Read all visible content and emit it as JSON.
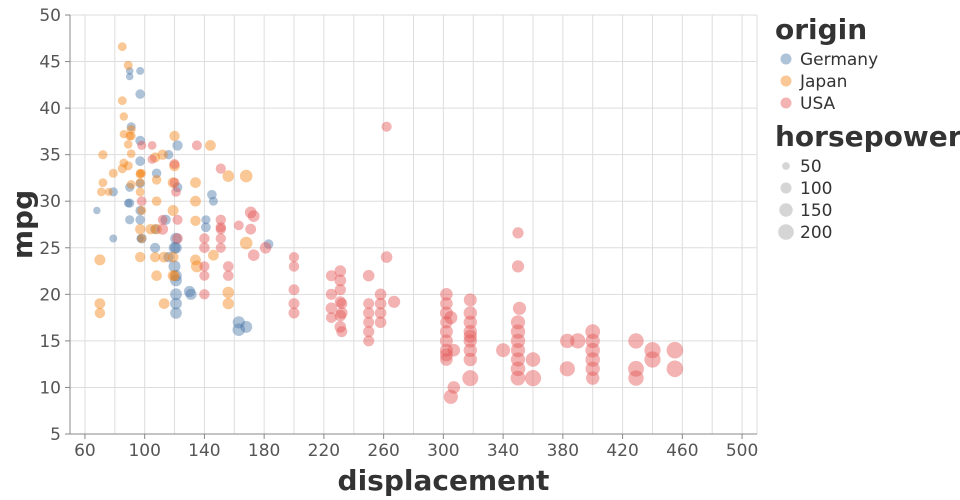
{
  "chart_data": {
    "type": "scatter",
    "xlabel": "displacement",
    "ylabel": "mpg",
    "xlim": [
      50,
      510
    ],
    "ylim": [
      5,
      50
    ],
    "x_ticks": [
      60,
      100,
      140,
      180,
      220,
      260,
      300,
      340,
      380,
      420,
      460,
      500
    ],
    "y_ticks": [
      5,
      10,
      15,
      20,
      25,
      30,
      35,
      40,
      45,
      50
    ],
    "grid": true,
    "color_legend": {
      "title": "origin",
      "entries": [
        {
          "name": "Germany",
          "color": "#4c78a8"
        },
        {
          "name": "Japan",
          "color": "#f58518"
        },
        {
          "name": "USA",
          "color": "#e45756"
        }
      ]
    },
    "size_legend": {
      "title": "horsepower",
      "entries": [
        {
          "label": "50",
          "value": 50
        },
        {
          "label": "100",
          "value": 100
        },
        {
          "label": "150",
          "value": 150
        },
        {
          "label": "200",
          "value": 200
        }
      ]
    },
    "series": [
      {
        "name": "Germany",
        "points": [
          [
            68,
            29,
            46
          ],
          [
            79,
            26,
            52
          ],
          [
            90,
            44,
            48
          ],
          [
            90,
            43.4,
            48
          ],
          [
            97,
            44,
            52
          ],
          [
            97,
            41.5,
            76
          ],
          [
            97,
            36.5,
            78
          ],
          [
            97,
            34.3,
            78
          ],
          [
            79,
            31,
            70
          ],
          [
            90,
            31.5,
            70
          ],
          [
            97,
            29,
            75
          ],
          [
            97,
            26,
            46
          ],
          [
            90,
            29.8,
            71
          ],
          [
            97,
            28,
            75
          ],
          [
            107,
            27,
            80
          ],
          [
            107,
            25,
            85
          ],
          [
            116,
            24,
            90
          ],
          [
            121,
            25,
            110
          ],
          [
            121,
            22,
            112
          ],
          [
            121,
            20,
            115
          ],
          [
            121,
            19,
            115
          ],
          [
            121,
            18,
            110
          ],
          [
            121,
            26,
            110
          ],
          [
            121,
            21.5,
            115
          ],
          [
            114,
            28,
            90
          ],
          [
            120,
            25,
            110
          ],
          [
            120,
            23,
            120
          ],
          [
            131,
            20,
            103
          ],
          [
            130,
            20.3,
            103
          ],
          [
            141,
            28,
            71
          ],
          [
            141,
            27.2,
            80
          ],
          [
            145,
            30.7,
            76
          ],
          [
            146,
            30,
            67
          ],
          [
            163,
            17,
            125
          ],
          [
            163,
            16.2,
            133
          ],
          [
            168,
            16.5,
            120
          ],
          [
            183,
            25.4,
            77
          ],
          [
            97,
            31.9,
            71
          ],
          [
            108,
            33,
            75
          ],
          [
            89,
            29.8,
            62
          ],
          [
            98,
            26,
            83
          ],
          [
            122,
            36,
            88
          ],
          [
            116,
            35,
            74
          ],
          [
            122,
            31.5,
            80
          ],
          [
            90,
            28,
            70
          ],
          [
            91,
            38,
            67
          ]
        ]
      },
      {
        "name": "Japan",
        "points": [
          [
            71,
            31,
            65
          ],
          [
            72,
            35,
            69
          ],
          [
            97,
            24,
            88
          ],
          [
            97,
            27,
            88
          ],
          [
            97,
            31,
            67
          ],
          [
            97,
            32,
            67
          ],
          [
            72,
            32,
            65
          ],
          [
            76,
            31,
            52
          ],
          [
            79,
            33,
            68
          ],
          [
            85,
            33.5,
            70
          ],
          [
            85,
            40.8,
            65
          ],
          [
            86,
            39.1,
            58
          ],
          [
            86,
            37.2,
            58
          ],
          [
            86,
            34.1,
            65
          ],
          [
            89,
            33.8,
            70
          ],
          [
            89,
            36.1,
            60
          ],
          [
            90,
            37,
            65
          ],
          [
            91,
            37.7,
            68
          ],
          [
            91,
            31.8,
            67
          ],
          [
            91,
            35.1,
            60
          ],
          [
            97,
            33,
            67
          ],
          [
            97,
            32.9,
            67
          ],
          [
            98,
            29,
            68
          ],
          [
            98,
            26,
            68
          ],
          [
            104,
            27,
            88
          ],
          [
            107,
            24,
            86
          ],
          [
            108,
            27,
            94
          ],
          [
            108,
            22,
            94
          ],
          [
            108,
            32.3,
            75
          ],
          [
            112,
            35,
            88
          ],
          [
            113,
            24,
            95
          ],
          [
            113,
            19,
            95
          ],
          [
            119,
            32,
            97
          ],
          [
            119,
            24,
            97
          ],
          [
            119,
            22,
            97
          ],
          [
            120,
            37,
            88
          ],
          [
            120,
            33.8,
            97
          ],
          [
            134,
            27.9,
            88
          ],
          [
            134,
            23.7,
            95
          ],
          [
            134,
            32,
            96
          ],
          [
            144,
            36,
            96
          ],
          [
            146,
            24.2,
            97
          ],
          [
            156,
            20.2,
            110
          ],
          [
            156,
            19,
            108
          ],
          [
            168,
            25.5,
            132
          ],
          [
            168,
            32.7,
            132
          ],
          [
            70,
            23.7,
            100
          ],
          [
            70,
            19,
            97
          ],
          [
            70,
            18,
            90
          ],
          [
            85,
            46.6,
            65
          ],
          [
            89,
            44.6,
            67
          ],
          [
            91,
            37,
            68
          ],
          [
            98,
            33,
            62
          ],
          [
            107,
            34.7,
            86
          ],
          [
            108,
            30,
            75
          ],
          [
            119,
            29,
            100
          ],
          [
            120,
            22,
            88
          ],
          [
            134,
            30,
            95
          ],
          [
            135,
            23,
            120
          ],
          [
            156,
            32.7,
            110
          ]
        ]
      },
      {
        "name": "USA",
        "points": [
          [
            98,
            36,
            70
          ],
          [
            98,
            30,
            80
          ],
          [
            105,
            36,
            63
          ],
          [
            105,
            34.5,
            70
          ],
          [
            112,
            27,
            100
          ],
          [
            112,
            28,
            80
          ],
          [
            120,
            34,
            84
          ],
          [
            120,
            32,
            84
          ],
          [
            121,
            31,
            80
          ],
          [
            122,
            28,
            85
          ],
          [
            122,
            26,
            92
          ],
          [
            135,
            36,
            84
          ],
          [
            140,
            26,
            90
          ],
          [
            140,
            25,
            92
          ],
          [
            140,
            23,
            86
          ],
          [
            140,
            22,
            86
          ],
          [
            140,
            20,
            88
          ],
          [
            151,
            28,
            90
          ],
          [
            151,
            26,
            90
          ],
          [
            151,
            27,
            90
          ],
          [
            151,
            25,
            85
          ],
          [
            151,
            33.5,
            85
          ],
          [
            151,
            27.2,
            88
          ],
          [
            156,
            23,
            92
          ],
          [
            156,
            22,
            92
          ],
          [
            163,
            27.4,
            80
          ],
          [
            171,
            27,
            97
          ],
          [
            171,
            28.8,
            115
          ],
          [
            173,
            28.4,
            115
          ],
          [
            173,
            24.2,
            110
          ],
          [
            181,
            25,
            110
          ],
          [
            200,
            24,
            85
          ],
          [
            200,
            23,
            90
          ],
          [
            200,
            20.5,
            95
          ],
          [
            200,
            19,
            100
          ],
          [
            200,
            18,
            100
          ],
          [
            225,
            22,
            100
          ],
          [
            225,
            20,
            105
          ],
          [
            225,
            18.5,
            110
          ],
          [
            225,
            17.5,
            95
          ],
          [
            231,
            22.5,
            110
          ],
          [
            231,
            21.5,
            115
          ],
          [
            231,
            20.5,
            105
          ],
          [
            231,
            19.2,
            105
          ],
          [
            231,
            17.7,
            110
          ],
          [
            232,
            18,
            110
          ],
          [
            232,
            19,
            100
          ],
          [
            250,
            22,
            110
          ],
          [
            250,
            19,
            100
          ],
          [
            250,
            18,
            105
          ],
          [
            250,
            16,
            105
          ],
          [
            250,
            15,
            100
          ],
          [
            258,
            20,
            110
          ],
          [
            258,
            18,
            110
          ],
          [
            258,
            19,
            110
          ],
          [
            258,
            17,
            110
          ],
          [
            262,
            38,
            85
          ],
          [
            262,
            24,
            110
          ],
          [
            267,
            19.2,
            125
          ],
          [
            302,
            13,
            130
          ],
          [
            302,
            14,
            140
          ],
          [
            302,
            15,
            140
          ],
          [
            302,
            16,
            140
          ],
          [
            302,
            17,
            129
          ],
          [
            302,
            18,
            139
          ],
          [
            302,
            19,
            130
          ],
          [
            302,
            20,
            130
          ],
          [
            305,
            17.5,
            145
          ],
          [
            305,
            9,
            165
          ],
          [
            307,
            10,
            130
          ],
          [
            318,
            13,
            150
          ],
          [
            318,
            14,
            150
          ],
          [
            318,
            15,
            150
          ],
          [
            318,
            16,
            150
          ],
          [
            318,
            17,
            150
          ],
          [
            318,
            18,
            150
          ],
          [
            318,
            19.4,
            140
          ],
          [
            318,
            11,
            210
          ],
          [
            340,
            14,
            160
          ],
          [
            350,
            11,
            180
          ],
          [
            350,
            12,
            175
          ],
          [
            350,
            13,
            165
          ],
          [
            350,
            14,
            165
          ],
          [
            350,
            15,
            170
          ],
          [
            350,
            16,
            170
          ],
          [
            350,
            17,
            165
          ],
          [
            350,
            23,
            125
          ],
          [
            350,
            26.6,
            105
          ],
          [
            351,
            18.5,
            145
          ],
          [
            360,
            11,
            215
          ],
          [
            360,
            13,
            175
          ],
          [
            383,
            12,
            190
          ],
          [
            383,
            15,
            170
          ],
          [
            390,
            15,
            190
          ],
          [
            400,
            11,
            150
          ],
          [
            400,
            12,
            170
          ],
          [
            400,
            13,
            175
          ],
          [
            400,
            14,
            175
          ],
          [
            400,
            15,
            170
          ],
          [
            400,
            16,
            180
          ],
          [
            429,
            11,
            198
          ],
          [
            429,
            12,
            208
          ],
          [
            429,
            15,
            198
          ],
          [
            440,
            13,
            215
          ],
          [
            440,
            14,
            215
          ],
          [
            455,
            12,
            225
          ],
          [
            455,
            14,
            225
          ],
          [
            302,
            13.5,
            140
          ],
          [
            318,
            15.5,
            145
          ],
          [
            307,
            14,
            130
          ],
          [
            250,
            17,
            100
          ],
          [
            232,
            16,
            100
          ],
          [
            231,
            16.5,
            110
          ]
        ]
      }
    ]
  }
}
